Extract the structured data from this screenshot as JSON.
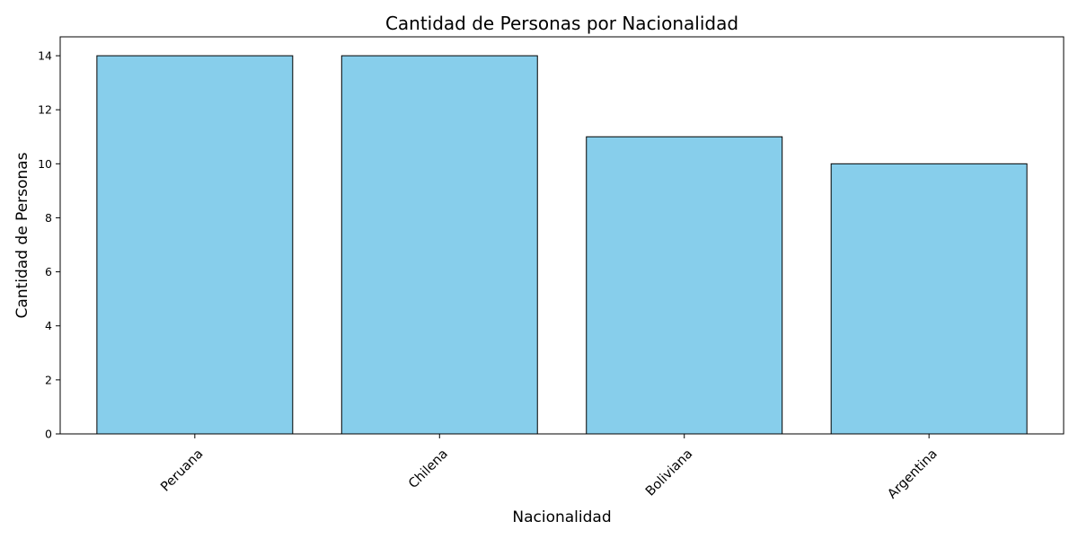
{
  "chart_data": {
    "type": "bar",
    "title": "Cantidad de Personas por Nacionalidad",
    "xlabel": "Nacionalidad",
    "ylabel": "Cantidad de Personas",
    "categories": [
      "Peruana",
      "Chilena",
      "Boliviana",
      "Argentina"
    ],
    "values": [
      14,
      14,
      11,
      10
    ],
    "ylim": [
      0,
      14.7
    ],
    "yticks": [
      0,
      2,
      4,
      6,
      8,
      10,
      12,
      14
    ],
    "bar_color": "#87CEEB",
    "bar_edge_color": "#000000",
    "grid": false,
    "legend": "none"
  }
}
